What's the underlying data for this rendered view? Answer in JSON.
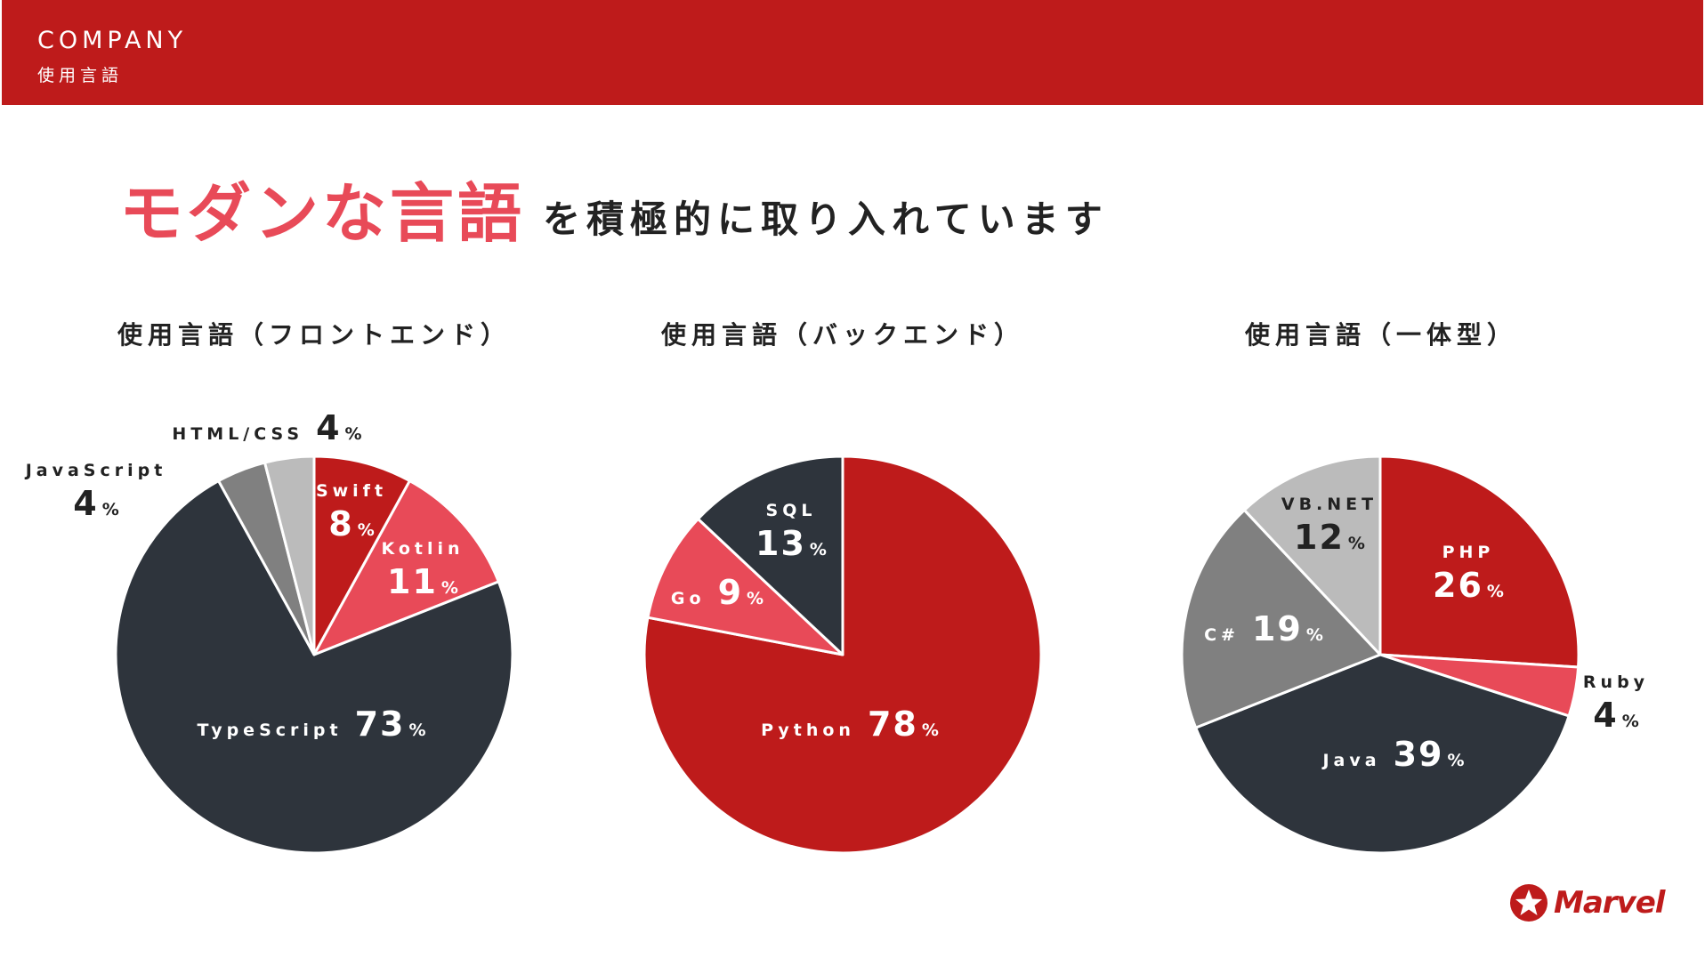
{
  "header": {
    "section": "COMPANY",
    "subtitle": "使用言語"
  },
  "headline": {
    "accent": "モダンな言語",
    "rest": "を積極的に取り入れています"
  },
  "logo": {
    "text": "Marvel"
  },
  "colors": {
    "red": "#BE1B1B",
    "pink": "#E84A58",
    "dark": "#2E343C",
    "gray": "#808080",
    "lightgray": "#BBBBBB"
  },
  "chart_data": [
    {
      "type": "pie",
      "title": "使用言語（フロントエンド）",
      "unit": "%",
      "slices": [
        {
          "label": "Swift",
          "value": 8,
          "color": "#BE1B1B"
        },
        {
          "label": "Kotlin",
          "value": 11,
          "color": "#E84A58"
        },
        {
          "label": "TypeScript",
          "value": 73,
          "color": "#2E343C"
        },
        {
          "label": "JavaScript",
          "value": 4,
          "color": "#808080"
        },
        {
          "label": "HTML/CSS",
          "value": 4,
          "color": "#BBBBBB"
        }
      ]
    },
    {
      "type": "pie",
      "title": "使用言語（バックエンド）",
      "unit": "%",
      "slices": [
        {
          "label": "Python",
          "value": 78,
          "color": "#BE1B1B"
        },
        {
          "label": "Go",
          "value": 9,
          "color": "#E84A58"
        },
        {
          "label": "SQL",
          "value": 13,
          "color": "#2E343C"
        }
      ]
    },
    {
      "type": "pie",
      "title": "使用言語（一体型）",
      "unit": "%",
      "slices": [
        {
          "label": "PHP",
          "value": 26,
          "color": "#BE1B1B"
        },
        {
          "label": "Ruby",
          "value": 4,
          "color": "#E84A58"
        },
        {
          "label": "Java",
          "value": 39,
          "color": "#2E343C"
        },
        {
          "label": "C#",
          "value": 19,
          "color": "#808080"
        },
        {
          "label": "VB.NET",
          "value": 12,
          "color": "#BBBBBB"
        }
      ]
    }
  ]
}
